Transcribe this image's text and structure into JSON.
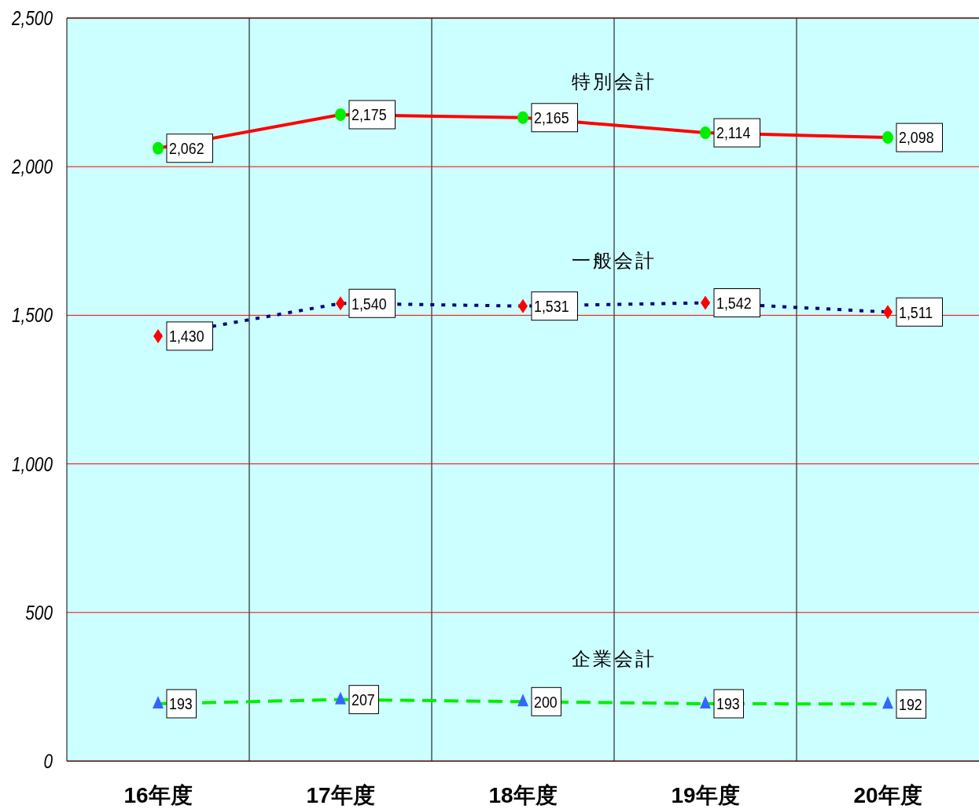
{
  "chart_data": {
    "type": "line",
    "categories": [
      "16年度",
      "17年度",
      "18年度",
      "19年度",
      "20年度"
    ],
    "series": [
      {
        "name": "特別会計",
        "color": "#ff0000",
        "colors": [
          "#00ee00",
          "#00ee00",
          "#00ee00",
          "#00ee00",
          "#00ee00"
        ],
        "marker": "circle",
        "line_style": "solid",
        "values": [
          2062,
          2175,
          2165,
          2114,
          2098
        ],
        "value_labels": [
          "2,062",
          "2,175",
          "2,165",
          "2,114",
          "2,098"
        ]
      },
      {
        "name": "一般会計",
        "color": "#000080",
        "colors": [
          "#ff0000",
          "#ff0000",
          "#ff0000",
          "#ff0000",
          "#ff0000"
        ],
        "marker": "diamond",
        "line_style": "dotted",
        "values": [
          1430,
          1540,
          1531,
          1542,
          1511
        ],
        "value_labels": [
          "1,430",
          "1,540",
          "1,531",
          "1,542",
          "1,511"
        ]
      },
      {
        "name": "企業会計",
        "color": "#00ee00",
        "colors": [
          "#3366ff",
          "#3366ff",
          "#3366ff",
          "#3366ff",
          "#3366ff"
        ],
        "marker": "triangle",
        "line_style": "dashed",
        "values": [
          193,
          207,
          200,
          193,
          192
        ],
        "value_labels": [
          "193",
          "207",
          "200",
          "193",
          "192"
        ]
      }
    ],
    "ylim": [
      0,
      2500
    ],
    "yticks": [
      0,
      {
        "value": 500,
        "label": "500"
      },
      {
        "value": 1000,
        "label": "1,000"
      },
      {
        "value": 1500,
        "label": "1,500"
      },
      {
        "value": 2000,
        "label": "2,000"
      },
      {
        "value": 2500,
        "label": "2,500"
      }
    ],
    "grid": "y"
  }
}
